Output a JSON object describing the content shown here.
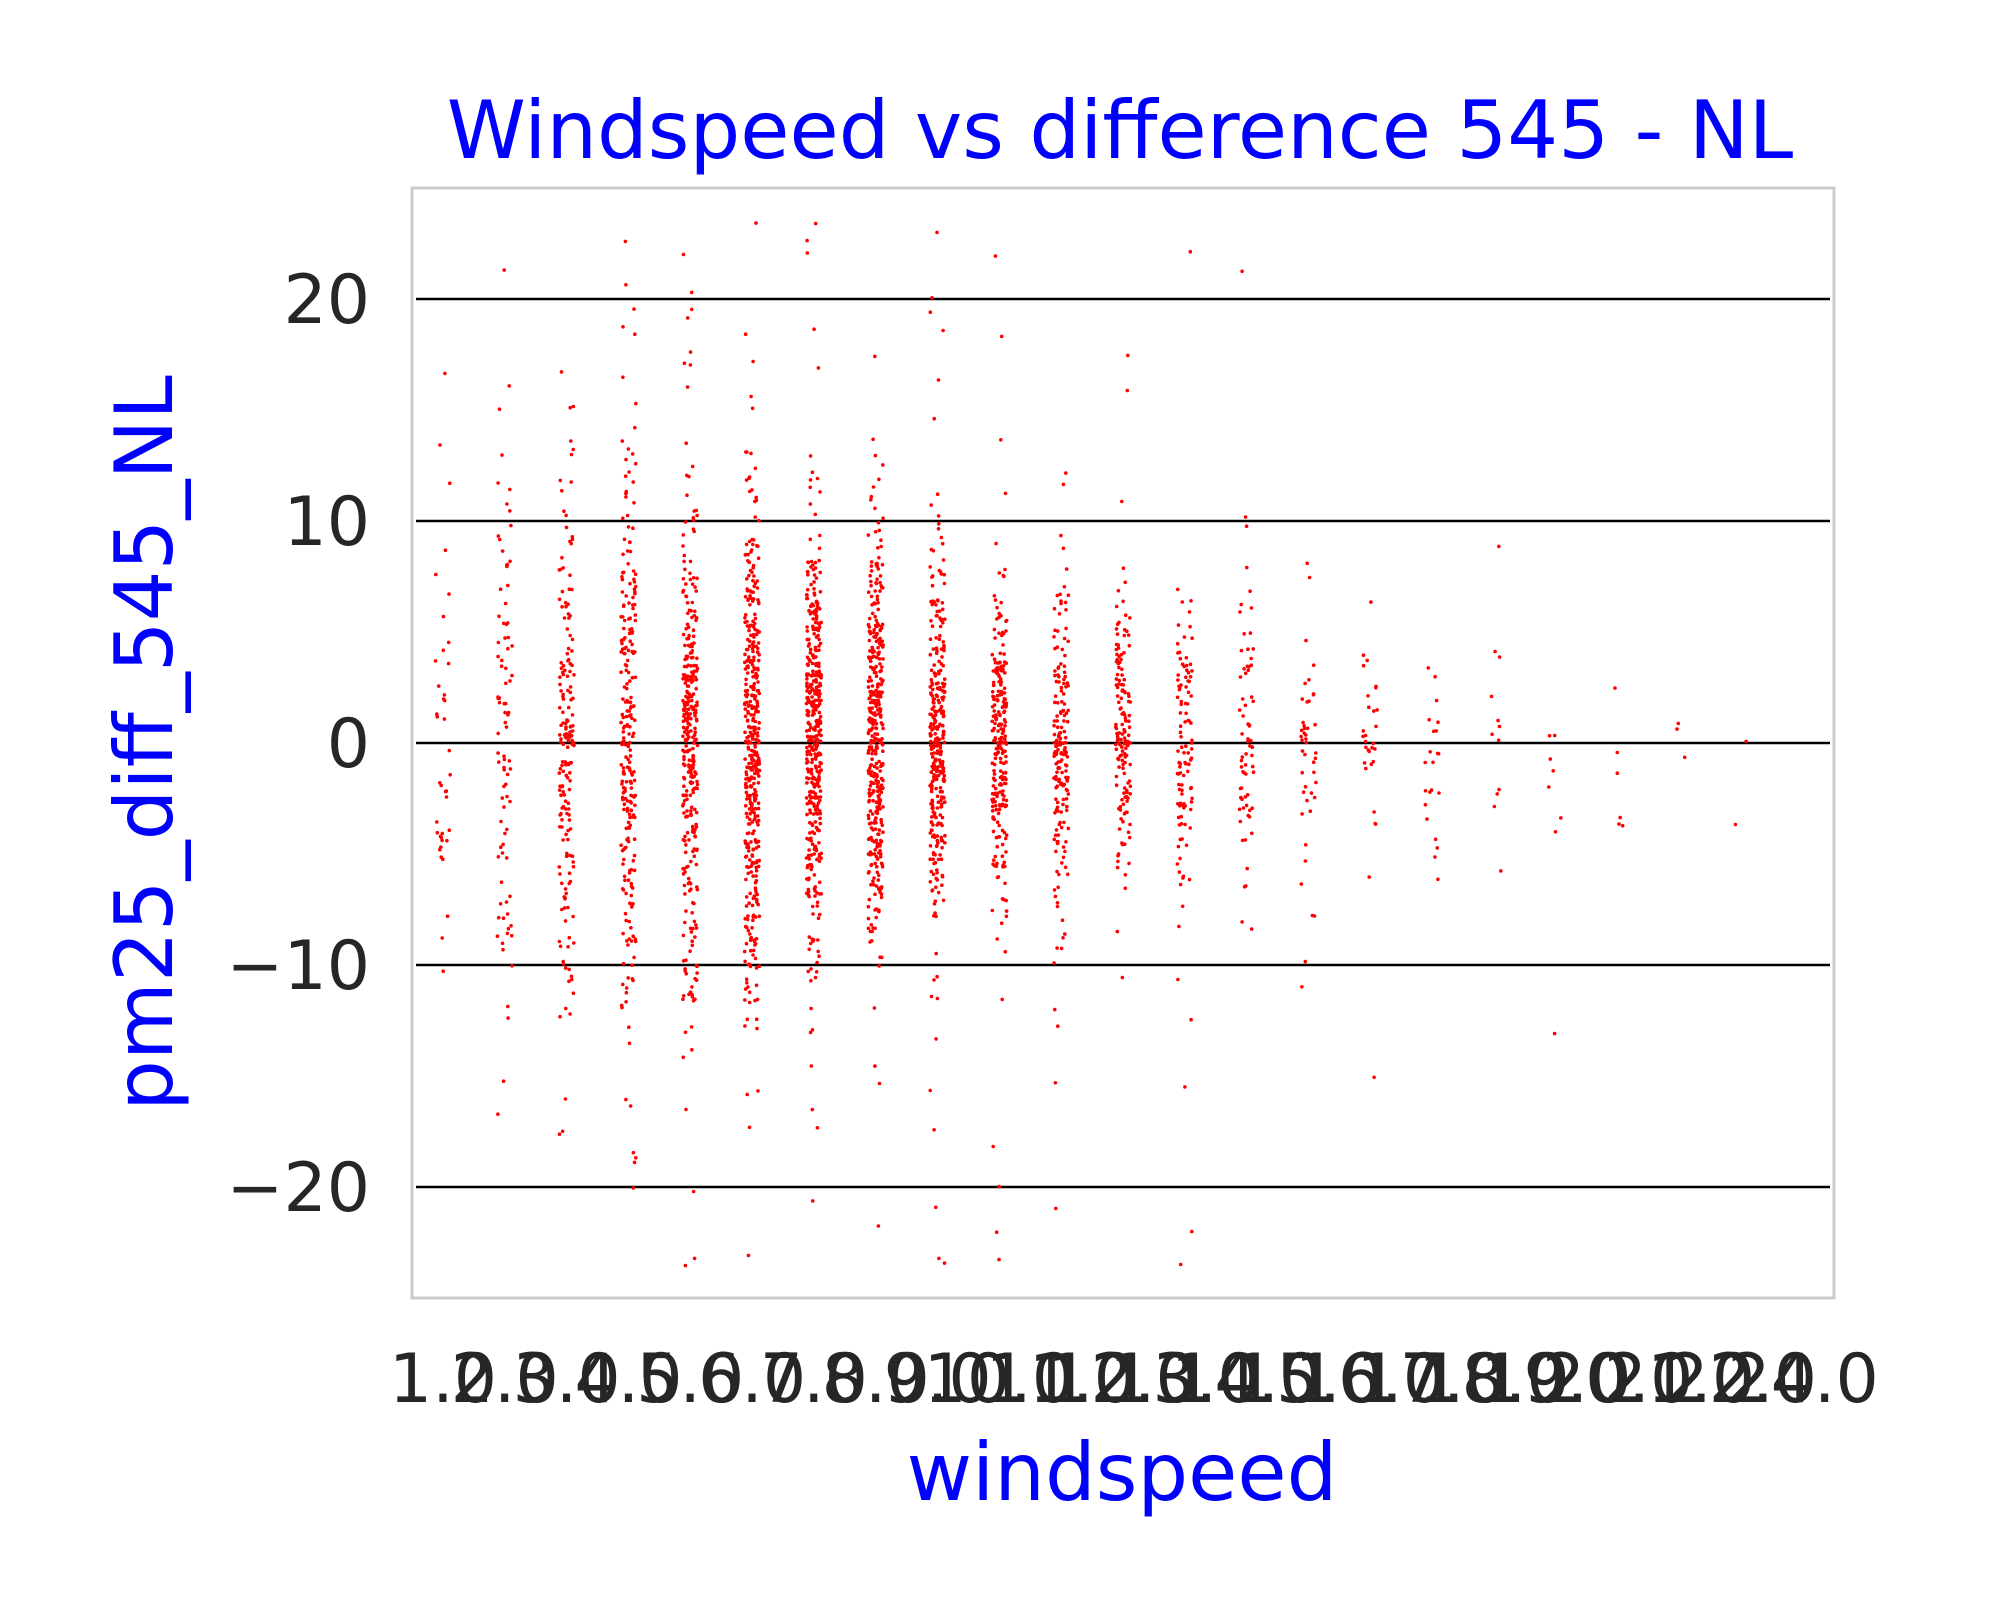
{
  "colors": {
    "title": "#0000ff",
    "axis_label": "#0000ff",
    "points": "#ff0000",
    "gridline": "#000000",
    "frame": "#cccccc",
    "tick_text": "#262626"
  },
  "chart_data": {
    "type": "scatter",
    "title": "Windspeed vs difference 545 - NL",
    "xlabel": "windspeed",
    "ylabel": "pm25_diff_545_NL",
    "x_categories": [
      "1.0",
      "2.0",
      "3.0",
      "4.0",
      "5.0",
      "6.0",
      "7.0",
      "8.0",
      "9.0",
      "10.0",
      "11.0",
      "12.0",
      "13.0",
      "14.0",
      "15.0",
      "16.0",
      "17.0",
      "18.0",
      "19.0",
      "20.0",
      "21.0",
      "22.0",
      "24.0"
    ],
    "y_ticks": [
      {
        "value": 20,
        "label": "20"
      },
      {
        "value": 10,
        "label": "10"
      },
      {
        "value": 0,
        "label": "0"
      },
      {
        "value": -10,
        "label": "−10"
      },
      {
        "value": -20,
        "label": "−20"
      }
    ],
    "ylim": [
      -25,
      25
    ],
    "grid": "horizontal",
    "legend": "none",
    "marker": "point",
    "series": [
      {
        "x_category_spread": [
          {
            "category": "1.0",
            "count": 40,
            "spread_sd": 6
          },
          {
            "category": "2.0",
            "count": 90,
            "spread_sd": 6.5
          },
          {
            "category": "3.0",
            "count": 180,
            "spread_sd": 6.5
          },
          {
            "category": "4.0",
            "count": 260,
            "spread_sd": 6.5
          },
          {
            "category": "5.0",
            "count": 340,
            "spread_sd": 5.5
          },
          {
            "category": "6.0",
            "count": 420,
            "spread_sd": 5.5
          },
          {
            "category": "7.0",
            "count": 430,
            "spread_sd": 4.5
          },
          {
            "category": "8.0",
            "count": 400,
            "spread_sd": 4.5
          },
          {
            "category": "9.0",
            "count": 330,
            "spread_sd": 3.8
          },
          {
            "category": "10.0",
            "count": 250,
            "spread_sd": 3.5
          },
          {
            "category": "11.0",
            "count": 180,
            "spread_sd": 3.3
          },
          {
            "category": "12.0",
            "count": 150,
            "spread_sd": 3.2
          },
          {
            "category": "13.0",
            "count": 110,
            "spread_sd": 3.5
          },
          {
            "category": "14.0",
            "count": 70,
            "spread_sd": 3.5
          },
          {
            "category": "15.0",
            "count": 45,
            "spread_sd": 2.8
          },
          {
            "category": "16.0",
            "count": 30,
            "spread_sd": 2.5
          },
          {
            "category": "17.0",
            "count": 22,
            "spread_sd": 2.5
          },
          {
            "category": "18.0",
            "count": 12,
            "spread_sd": 2.5
          },
          {
            "category": "19.0",
            "count": 8,
            "spread_sd": 3
          },
          {
            "category": "20.0",
            "count": 6,
            "spread_sd": 2.5
          },
          {
            "category": "21.0",
            "count": 3,
            "spread_sd": 2
          },
          {
            "category": "22.0",
            "count": 2,
            "spread_sd": 2
          },
          {
            "category": "24.0",
            "count": 0,
            "spread_sd": 0
          }
        ]
      }
    ]
  }
}
